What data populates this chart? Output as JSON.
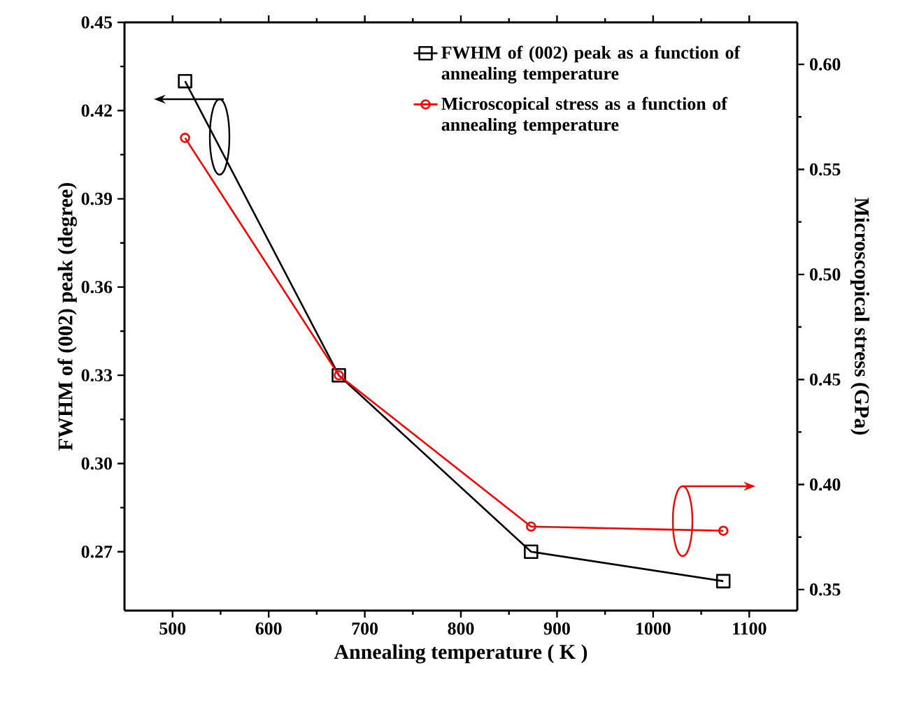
{
  "chart_data": {
    "type": "line",
    "xlabel": "Annealing temperature ( K )",
    "ylabel": "FWHM of (002) peak (degree)",
    "y2label": "Microscopical stress (GPa)",
    "x": [
      513,
      673,
      873,
      1073
    ],
    "series": [
      {
        "name": "FWHM of (002) peak as a function of annealing temperature",
        "color": "#000000",
        "marker": "square",
        "values": [
          0.43,
          0.33,
          0.27,
          0.26
        ]
      },
      {
        "name": "Microscopical stress as a function of annealing temperature",
        "color": "#ff0000",
        "marker": "circle",
        "axis": "y2",
        "values": [
          0.565,
          0.452,
          0.38,
          0.378
        ]
      }
    ],
    "xlim": [
      450,
      1150
    ],
    "xticks": [
      500,
      600,
      700,
      800,
      900,
      1000,
      1100
    ],
    "ylim": [
      0.25,
      0.45
    ],
    "yticks": [
      0.27,
      {
        "value": 0.3,
        "label": "0.30"
      },
      0.33,
      0.36,
      0.39,
      0.42,
      0.45
    ],
    "y2lim": [
      0.34,
      0.62
    ],
    "y2ticks": [
      0.35,
      {
        "value": 0.4,
        "label": "0.40"
      },
      0.45,
      {
        "value": 0.5,
        "label": "0.50"
      },
      0.55,
      {
        "value": 0.6,
        "label": "0.60"
      }
    ],
    "legend": "top right",
    "grid": false,
    "line_style": "solid"
  }
}
